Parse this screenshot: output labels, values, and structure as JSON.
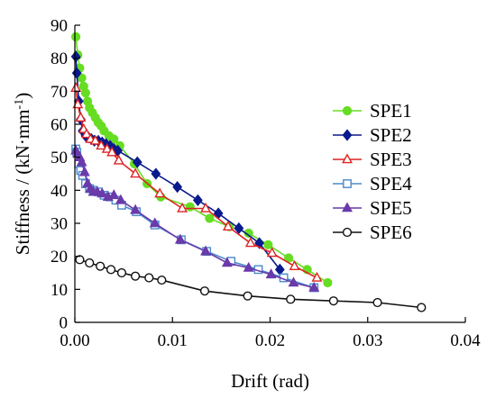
{
  "chart_data": {
    "type": "line",
    "xlabel": "Drift (rad)",
    "ylabel_main": "Stiffness / (kN·mm",
    "ylabel_sup": "-1",
    "ylabel_close": ")",
    "xlim": [
      0,
      0.04
    ],
    "ylim": [
      0,
      90
    ],
    "x_ticks": [
      0,
      0.01,
      0.02,
      0.03,
      0.04
    ],
    "x_tick_labels": [
      "0.00",
      "0.01",
      "0.02",
      "0.03",
      "0.04"
    ],
    "y_ticks": [
      0,
      10,
      20,
      30,
      40,
      50,
      60,
      70,
      80,
      90
    ],
    "y_tick_labels": [
      "0",
      "10",
      "20",
      "30",
      "40",
      "50",
      "60",
      "70",
      "80",
      "90"
    ],
    "grid": false,
    "legend_position": "right",
    "series": [
      {
        "name": "SPE1",
        "color": "#66dd22",
        "marker": "circle-filled",
        "x": [
          0.0001,
          0.0003,
          0.0005,
          0.0007,
          0.0009,
          0.0011,
          0.0013,
          0.0015,
          0.0018,
          0.0021,
          0.0024,
          0.0027,
          0.003,
          0.0035,
          0.004,
          0.0046,
          0.0061,
          0.0074,
          0.0088,
          0.0118,
          0.0138,
          0.0158,
          0.0178,
          0.0198,
          0.0219,
          0.0238,
          0.0259
        ],
        "y": [
          86.5,
          81.0,
          77.0,
          74.0,
          71.5,
          69.5,
          67.0,
          65.0,
          63.5,
          62.0,
          60.5,
          59.5,
          58.0,
          56.5,
          55.5,
          53.5,
          48.0,
          42.0,
          38.0,
          35.0,
          31.5,
          29.0,
          27.0,
          23.5,
          19.5,
          16.0,
          12.0
        ]
      },
      {
        "name": "SPE2",
        "color": "#0a1a8c",
        "marker": "diamond-filled",
        "x": [
          0.0001,
          0.0002,
          0.0004,
          0.0006,
          0.0008,
          0.0011,
          0.0014,
          0.0017,
          0.002,
          0.0024,
          0.0028,
          0.0032,
          0.0036,
          0.004,
          0.0044,
          0.0064,
          0.0083,
          0.0105,
          0.0126,
          0.0147,
          0.0168,
          0.0189,
          0.021
        ],
        "y": [
          80.5,
          75.5,
          67.0,
          61.5,
          58.0,
          56.5,
          56.0,
          55.5,
          55.0,
          55.0,
          54.5,
          54.0,
          53.5,
          52.5,
          52.0,
          48.5,
          45.0,
          41.0,
          37.0,
          33.0,
          28.5,
          24.0,
          16.0
        ]
      },
      {
        "name": "SPE3",
        "color": "#dd2222",
        "marker": "triangle-open",
        "x": [
          0.0001,
          0.0003,
          0.0006,
          0.0009,
          0.0012,
          0.0016,
          0.0021,
          0.0027,
          0.0033,
          0.0038,
          0.0045,
          0.0062,
          0.0087,
          0.011,
          0.0134,
          0.0157,
          0.018,
          0.0202,
          0.0225,
          0.0248
        ],
        "y": [
          71.0,
          66.0,
          62.0,
          58.5,
          57.0,
          55.5,
          55.0,
          53.5,
          52.5,
          51.5,
          49.0,
          45.0,
          39.0,
          34.5,
          34.5,
          29.0,
          24.0,
          21.0,
          17.0,
          13.5
        ]
      },
      {
        "name": "SPE4",
        "color": "#4a8acc",
        "marker": "square-open",
        "x": [
          0.0001,
          0.0002,
          0.0004,
          0.0006,
          0.0008,
          0.0011,
          0.0015,
          0.0019,
          0.0024,
          0.003,
          0.0036,
          0.0042,
          0.0048,
          0.0063,
          0.0082,
          0.0109,
          0.0135,
          0.016,
          0.0188,
          0.0214,
          0.0245
        ],
        "y": [
          52.5,
          51.5,
          48.0,
          46.0,
          44.5,
          42.0,
          40.5,
          40.0,
          39.5,
          38.5,
          38.0,
          37.0,
          35.5,
          33.5,
          29.5,
          25.0,
          21.5,
          18.5,
          16.0,
          13.5,
          10.5
        ]
      },
      {
        "name": "SPE5",
        "color": "#6a3aaa",
        "marker": "triangle-filled",
        "x": [
          0.0001,
          0.0003,
          0.0005,
          0.0007,
          0.001,
          0.0013,
          0.0016,
          0.0019,
          0.0023,
          0.0028,
          0.0034,
          0.004,
          0.0047,
          0.0062,
          0.0082,
          0.0108,
          0.0134,
          0.0156,
          0.0178,
          0.0201,
          0.0224,
          0.0245
        ],
        "y": [
          52.0,
          51.0,
          50.0,
          48.5,
          45.5,
          42.0,
          40.5,
          39.5,
          39.5,
          39.0,
          38.0,
          38.5,
          37.0,
          34.0,
          30.0,
          25.0,
          21.5,
          18.0,
          16.5,
          14.5,
          12.0,
          10.5
        ]
      },
      {
        "name": "SPE6",
        "color": "#111111",
        "marker": "circle-open",
        "x": [
          0.0005,
          0.0015,
          0.0026,
          0.0037,
          0.0048,
          0.0062,
          0.0076,
          0.0089,
          0.0133,
          0.0177,
          0.0221,
          0.0265,
          0.031,
          0.0355
        ],
        "y": [
          19.0,
          18.0,
          17.0,
          16.0,
          15.0,
          14.0,
          13.5,
          12.8,
          9.5,
          8.0,
          7.0,
          6.5,
          6.0,
          4.5
        ]
      }
    ]
  }
}
